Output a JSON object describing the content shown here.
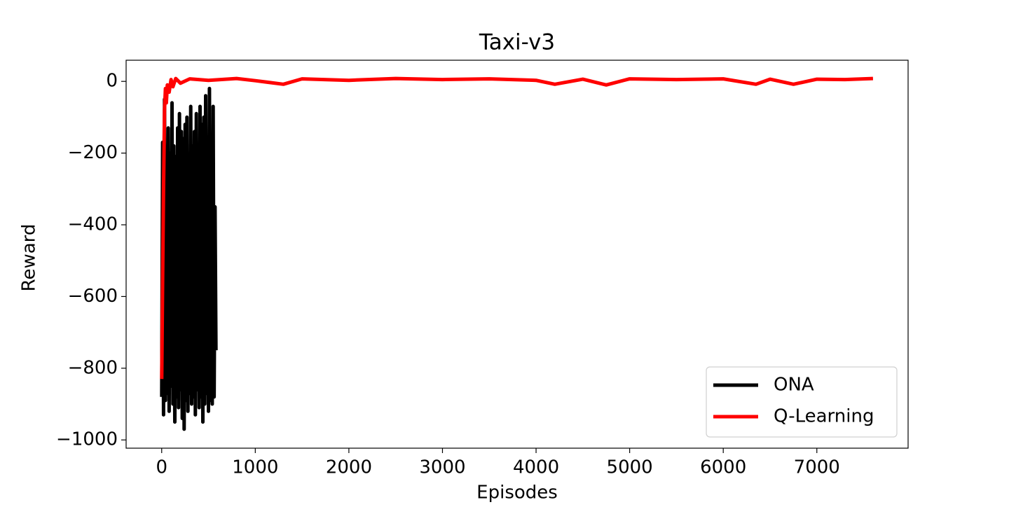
{
  "chart_data": {
    "type": "line",
    "title": "Taxi-v3",
    "xlabel": "Episodes",
    "ylabel": "Reward",
    "xlim": [
      -380,
      7975
    ],
    "ylim": [
      -1023,
      59
    ],
    "xticks": [
      0,
      1000,
      2000,
      3000,
      4000,
      5000,
      6000,
      7000
    ],
    "yticks": [
      {
        "value": -1000,
        "label": "−1000"
      },
      {
        "value": -800,
        "label": "−800"
      },
      {
        "value": -600,
        "label": "−600"
      },
      {
        "value": -400,
        "label": "−400"
      },
      {
        "value": -200,
        "label": "−200"
      },
      0
    ],
    "legend": "lower right",
    "series": [
      {
        "name": "ONA",
        "color": "#000000",
        "x": [
          0,
          10,
          20,
          30,
          40,
          50,
          60,
          70,
          80,
          90,
          100,
          110,
          120,
          130,
          140,
          150,
          160,
          170,
          180,
          190,
          200,
          210,
          220,
          230,
          240,
          250,
          260,
          270,
          280,
          290,
          300,
          310,
          320,
          330,
          340,
          350,
          360,
          370,
          380,
          390,
          400,
          410,
          420,
          430,
          440,
          450,
          460,
          470,
          480,
          490,
          500,
          510,
          520,
          530,
          540,
          550,
          560,
          570,
          580
        ],
        "values": [
          -880,
          -170,
          -930,
          -50,
          -890,
          -300,
          -870,
          -130,
          -920,
          -200,
          -850,
          -60,
          -900,
          -180,
          -950,
          -210,
          -880,
          -130,
          -910,
          -90,
          -860,
          -140,
          -940,
          -160,
          -970,
          -120,
          -890,
          -100,
          -920,
          -250,
          -870,
          -70,
          -900,
          -180,
          -880,
          -140,
          -930,
          -90,
          -860,
          -200,
          -910,
          -70,
          -880,
          -120,
          -950,
          -100,
          -900,
          -40,
          -870,
          -160,
          -920,
          -20,
          -890,
          -150,
          -900,
          -70,
          -880,
          -350,
          -750
        ]
      },
      {
        "name": "Q-Learning",
        "color": "#ff0000",
        "x": [
          0,
          10,
          20,
          30,
          40,
          50,
          60,
          80,
          100,
          120,
          150,
          200,
          300,
          500,
          800,
          1000,
          1300,
          1500,
          2000,
          2500,
          3000,
          3500,
          4000,
          4200,
          4500,
          4750,
          5000,
          5500,
          6000,
          6350,
          6500,
          6750,
          7000,
          7300,
          7600
        ],
        "values": [
          -830,
          -550,
          -300,
          -80,
          -20,
          -60,
          -10,
          -30,
          5,
          -15,
          8,
          -5,
          7,
          3,
          8,
          2,
          -8,
          7,
          3,
          8,
          5,
          7,
          3,
          -8,
          6,
          -10,
          7,
          5,
          7,
          -8,
          6,
          -8,
          6,
          5,
          8
        ]
      }
    ]
  }
}
